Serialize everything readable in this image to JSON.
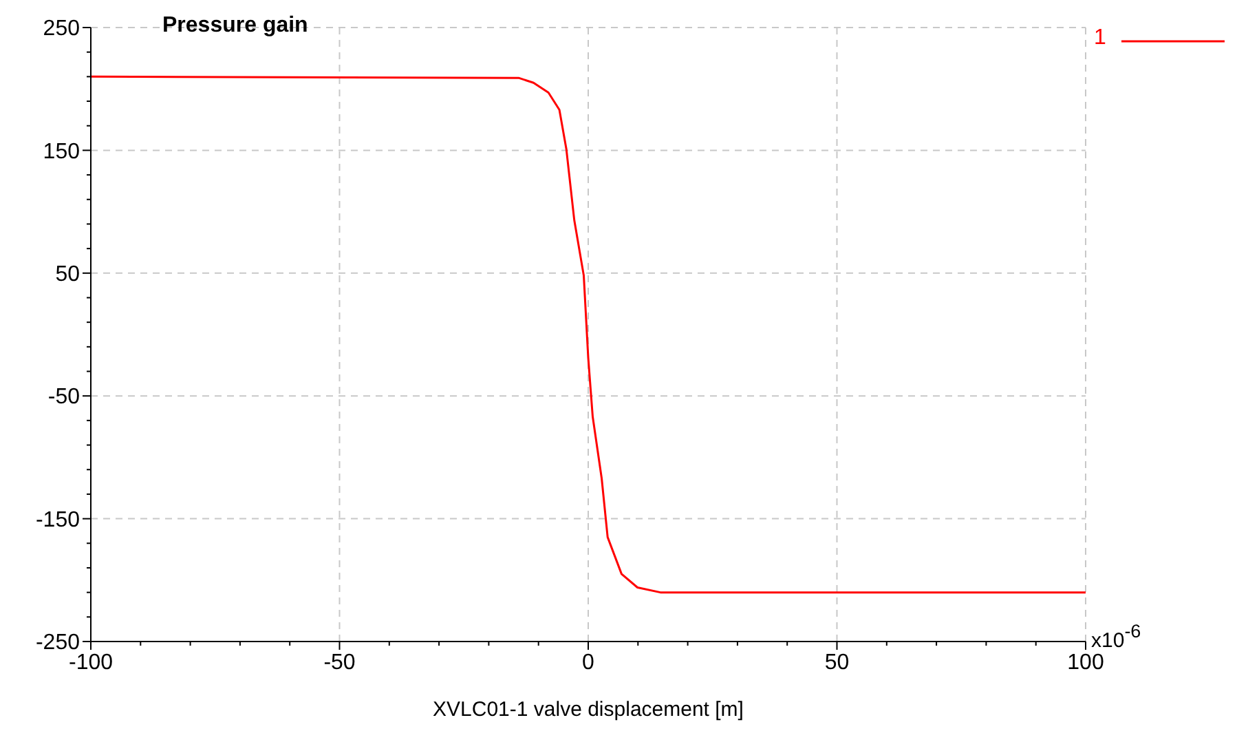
{
  "chart_data": {
    "type": "line",
    "title": "Pressure gain",
    "xlabel": "XVLC01-1 valve displacement [m]",
    "annotations": [
      "x10$^{-6}$"
    ],
    "xlim": [
      -100,
      100
    ],
    "xticks": [
      -100,
      -50,
      0,
      50,
      100
    ],
    "ylim": [
      -250,
      250
    ],
    "yticks": [
      -250,
      -150,
      -50,
      50,
      150,
      250
    ],
    "grid": true,
    "legend": "top right",
    "marker": "none",
    "line_style": "solid",
    "series": [
      {
        "name": "1",
        "color": "#ff0000",
        "x": [
          -100,
          -14,
          -11,
          -8,
          -5.8,
          -4.4,
          -2.8,
          -0.9,
          0,
          0.9,
          2.7,
          3.9,
          6.7,
          9.9,
          14.5,
          100
        ],
        "values": [
          210,
          209,
          205,
          197,
          183,
          151,
          93,
          48,
          -19,
          -67,
          -117,
          -165,
          -195,
          -206,
          -210,
          -210
        ]
      }
    ]
  }
}
